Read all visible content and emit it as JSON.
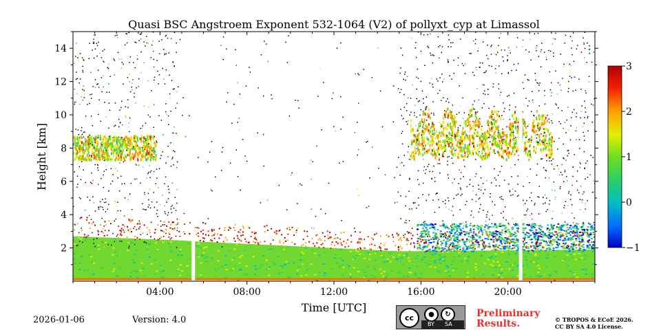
{
  "chart_data": {
    "type": "heatmap",
    "title": "Quasi BSC Angstroem Exponent 532-1064 (V2) of pollyxt_cyp at Limassol",
    "xlabel": "Time [UTC]",
    "ylabel": "Height [km]",
    "x_unit": "hours UTC",
    "xlim": [
      0,
      24
    ],
    "ylim": [
      0,
      15
    ],
    "xticks": [
      4,
      8,
      12,
      16,
      20
    ],
    "xtick_labels": [
      "04:00",
      "08:00",
      "12:00",
      "16:00",
      "20:00"
    ],
    "yticks": [
      2,
      4,
      6,
      8,
      10,
      12,
      14
    ],
    "ytick_labels": [
      "2",
      "4",
      "6",
      "8",
      "10",
      "12",
      "14"
    ],
    "colorbar": {
      "range": [
        -1,
        3
      ],
      "ticks": [
        -1,
        0,
        1,
        2,
        3
      ],
      "tick_labels": [
        "−1",
        "0",
        "1",
        "2",
        "3"
      ],
      "colors": [
        "#0000cc",
        "#0090ff",
        "#00d0d0",
        "#40d040",
        "#a0e000",
        "#ffff00",
        "#ff8000",
        "#e00000",
        "#b00000"
      ]
    },
    "layers": [
      {
        "name": "boundary layer",
        "t_start": 0,
        "t_end": 24,
        "h_bottom": 0.1,
        "h_top_start": 2.7,
        "h_top_mid": 1.8,
        "h_top_end": 1.9,
        "value": 0.9
      },
      {
        "name": "elevated aerosol (morning)",
        "t_start": 0,
        "t_end": 3.8,
        "h_bottom": 7.0,
        "h_top": 8.8,
        "value": 1.3
      },
      {
        "name": "elevated aerosol (afternoon)",
        "t_start": 15.5,
        "t_end": 22.0,
        "h_bottom": 7.0,
        "h_top": 10.5,
        "value": 1.4
      },
      {
        "name": "dust layer",
        "t_start": 15.8,
        "t_end": 24,
        "h_bottom": 1.8,
        "h_top": 3.5,
        "value": 0.2
      }
    ],
    "data_gaps_utc": [
      5.55,
      20.6
    ]
  },
  "footer": {
    "date": "2026-01-06",
    "version": "Version: 4.0",
    "preliminary_line1": "Preliminary",
    "preliminary_line2": "Results.",
    "copyright_line1": "© TROPOS & ECoE 2026.",
    "copyright_line2": "CC BY SA 4.0 License."
  },
  "license_badge": {
    "cc": "cc",
    "by": "BY",
    "sa": "SA",
    "icons": [
      "person-icon",
      "share-alike-icon"
    ]
  }
}
